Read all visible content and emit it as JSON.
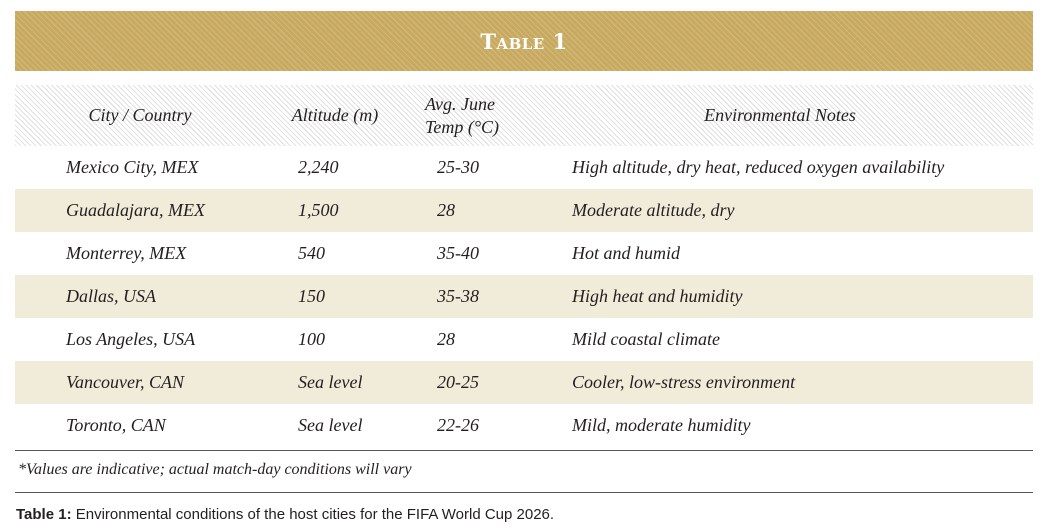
{
  "table_title": "Table 1",
  "headers": {
    "city": "City / Country",
    "altitude": "Altitude (m)",
    "temp_line1": "Avg. June",
    "temp_line2": "Temp (°C)",
    "notes": "Environmental Notes"
  },
  "rows": [
    {
      "city": "Mexico City, MEX",
      "altitude": "2,240",
      "temp": "25-30",
      "notes": "High altitude, dry heat, reduced oxygen availability"
    },
    {
      "city": "Guadalajara, MEX",
      "altitude": "1,500",
      "temp": "28",
      "notes": "Moderate altitude, dry"
    },
    {
      "city": "Monterrey, MEX",
      "altitude": "540",
      "temp": "35-40",
      "notes": "Hot and humid"
    },
    {
      "city": "Dallas, USA",
      "altitude": "150",
      "temp": "35-38",
      "notes": "High heat and humidity"
    },
    {
      "city": "Los Angeles, USA",
      "altitude": "100",
      "temp": "28",
      "notes": "Mild coastal climate"
    },
    {
      "city": "Vancouver, CAN",
      "altitude": "Sea level",
      "temp": "20-25",
      "notes": "Cooler, low-stress environment"
    },
    {
      "city": "Toronto, CAN",
      "altitude": "Sea level",
      "temp": "22-26",
      "notes": "Mild, moderate humidity"
    }
  ],
  "footnote": "*Values are indicative; actual match-day conditions will vary",
  "caption": {
    "label": "Table 1:",
    "text": " Environmental conditions of the host cities for the FIFA World Cup 2026."
  },
  "colors": {
    "banner": "#c8a960",
    "row_shade": "#f1ebd9",
    "text": "#231f20"
  }
}
